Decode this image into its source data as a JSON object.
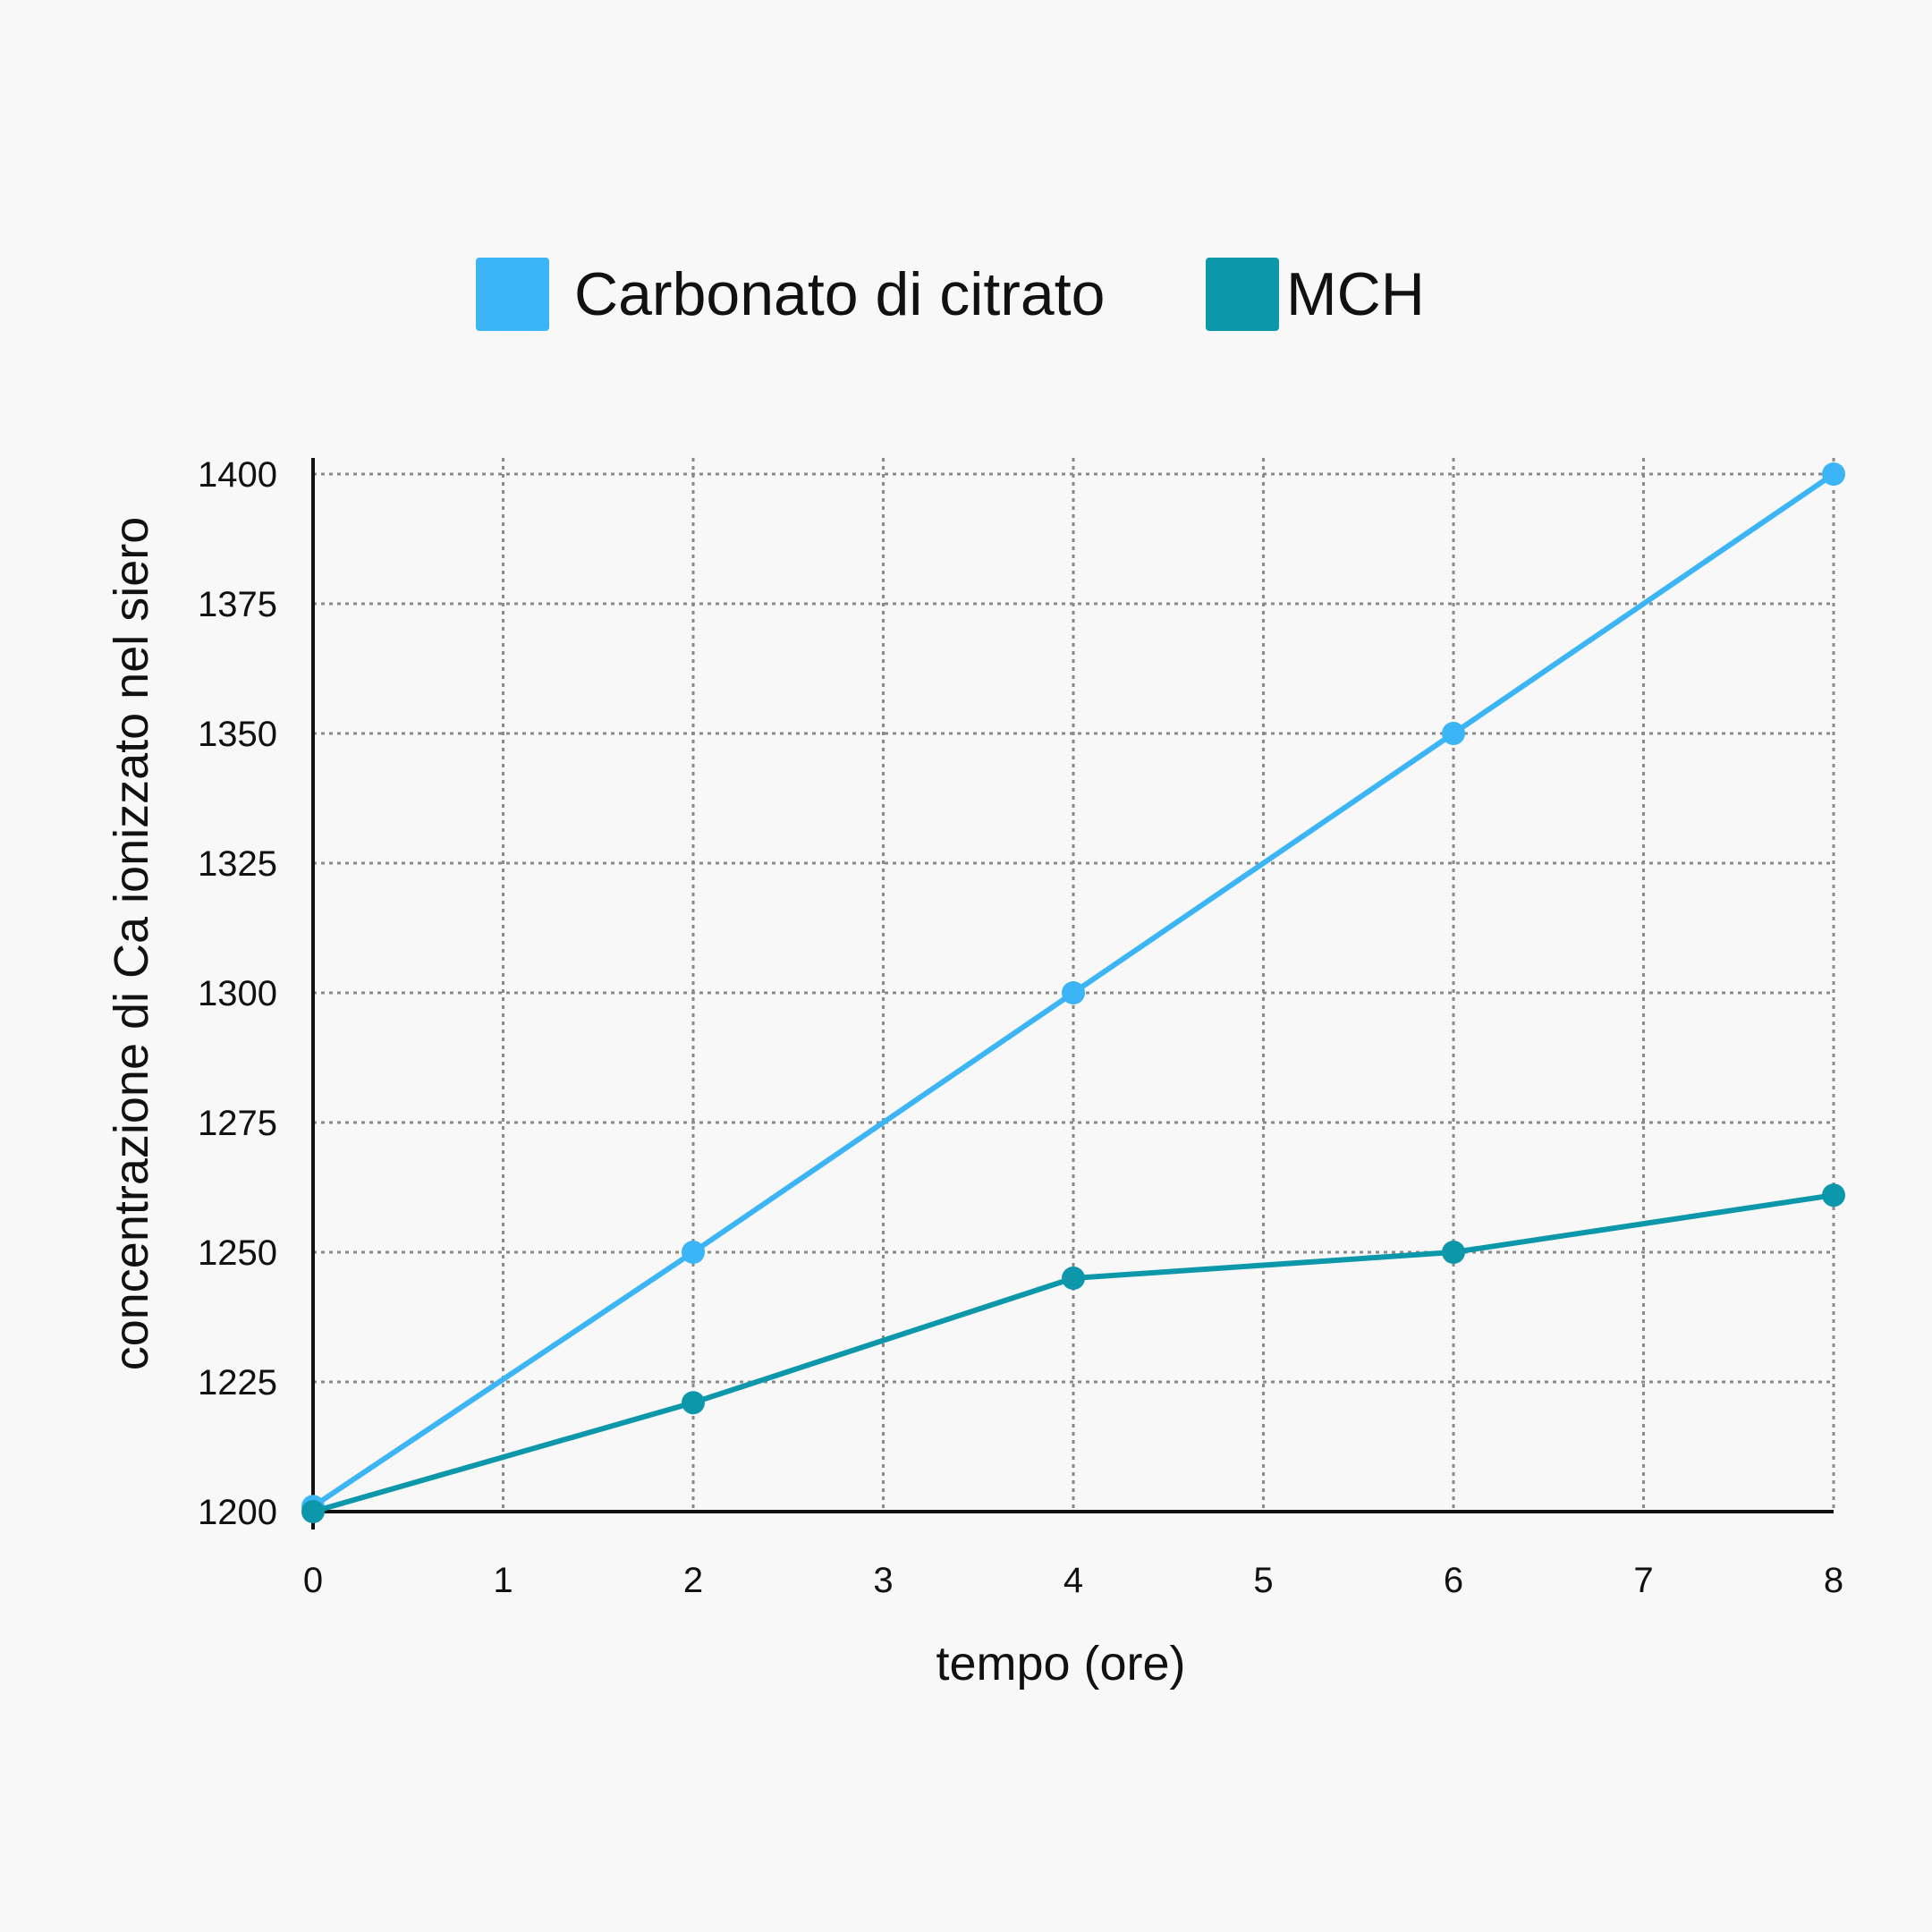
{
  "chart_data": {
    "type": "line",
    "title": "",
    "xlabel": "tempo (ore)",
    "ylabel": "concentrazione di Ca ionizzato nel siero",
    "x": [
      0,
      2,
      4,
      6,
      8
    ],
    "xlim": [
      0,
      8
    ],
    "ylim": [
      1200,
      1400
    ],
    "xticks": [
      "0",
      "1",
      "2",
      "3",
      "4",
      "5",
      "6",
      "7",
      "8"
    ],
    "yticks": [
      "1200",
      "1225",
      "1250",
      "1275",
      "1300",
      "1325",
      "1350",
      "1375",
      "1400"
    ],
    "grid": true,
    "legend_position": "top",
    "series": [
      {
        "name": "Carbonato di citrato",
        "color": "#3bb5f5",
        "values": [
          1201,
          1250,
          1300,
          1350,
          1400
        ]
      },
      {
        "name": "MCH",
        "color": "#0d97ab",
        "values": [
          1200,
          1221,
          1245,
          1250,
          1261
        ]
      }
    ]
  }
}
